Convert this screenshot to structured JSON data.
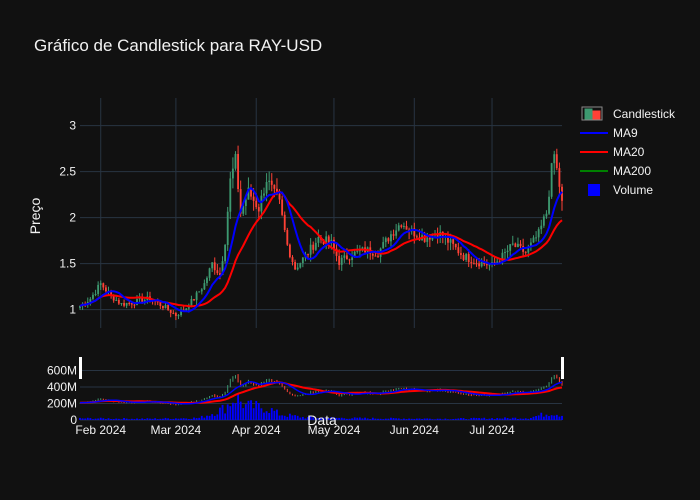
{
  "chart_data": {
    "type": "candlestick",
    "title": "Gráfico de Candlestick para RAY-USD",
    "xlabel": "Data",
    "ylabel": "Preço",
    "x_ticks": [
      "Feb 2024",
      "Mar 2024",
      "Apr 2024",
      "May 2024",
      "Jun 2024",
      "Jul 2024"
    ],
    "y_ticks_price": [
      1,
      1.5,
      2,
      2.5,
      3
    ],
    "y_ticks_volume": [
      "0",
      "200M",
      "400M",
      "600M"
    ],
    "price_range": [
      0.8,
      3.3
    ],
    "volume_range": [
      0,
      800000000
    ],
    "x_range": [
      "2024-01-24",
      "2024-07-28"
    ],
    "legend": [
      {
        "label": "Candlestick",
        "color": "#3d9970",
        "symbol": "candle"
      },
      {
        "label": "MA9",
        "color": "#0000ff",
        "symbol": "line"
      },
      {
        "label": "MA20",
        "color": "#ff0000",
        "symbol": "line"
      },
      {
        "label": "MA200",
        "color": "#008000",
        "symbol": "line"
      },
      {
        "label": "Volume",
        "color": "#0000ff",
        "symbol": "square"
      }
    ],
    "close_anchors": [
      [
        "2024-01-24",
        1.04
      ],
      [
        "2024-01-28",
        1.12
      ],
      [
        "2024-02-01",
        1.28
      ],
      [
        "2024-02-05",
        1.15
      ],
      [
        "2024-02-09",
        1.06
      ],
      [
        "2024-02-14",
        1.08
      ],
      [
        "2024-02-20",
        1.12
      ],
      [
        "2024-02-26",
        1.02
      ],
      [
        "2024-03-01",
        0.94
      ],
      [
        "2024-03-05",
        1.02
      ],
      [
        "2024-03-08",
        1.12
      ],
      [
        "2024-03-12",
        1.28
      ],
      [
        "2024-03-15",
        1.5
      ],
      [
        "2024-03-18",
        1.38
      ],
      [
        "2024-03-20",
        1.75
      ],
      [
        "2024-03-22",
        2.4
      ],
      [
        "2024-03-24",
        2.62
      ],
      [
        "2024-03-26",
        2.05
      ],
      [
        "2024-03-29",
        2.28
      ],
      [
        "2024-04-02",
        2.1
      ],
      [
        "2024-04-05",
        2.42
      ],
      [
        "2024-04-08",
        2.25
      ],
      [
        "2024-04-10",
        2.15
      ],
      [
        "2024-04-13",
        1.7
      ],
      [
        "2024-04-16",
        1.45
      ],
      [
        "2024-04-20",
        1.58
      ],
      [
        "2024-04-25",
        1.78
      ],
      [
        "2024-04-30",
        1.72
      ],
      [
        "2024-05-03",
        1.52
      ],
      [
        "2024-05-08",
        1.6
      ],
      [
        "2024-05-13",
        1.65
      ],
      [
        "2024-05-18",
        1.62
      ],
      [
        "2024-05-23",
        1.82
      ],
      [
        "2024-05-27",
        1.95
      ],
      [
        "2024-05-31",
        1.85
      ],
      [
        "2024-06-05",
        1.78
      ],
      [
        "2024-06-10",
        1.84
      ],
      [
        "2024-06-15",
        1.72
      ],
      [
        "2024-06-20",
        1.58
      ],
      [
        "2024-06-25",
        1.52
      ],
      [
        "2024-07-01",
        1.48
      ],
      [
        "2024-07-05",
        1.58
      ],
      [
        "2024-07-09",
        1.7
      ],
      [
        "2024-07-14",
        1.62
      ],
      [
        "2024-07-19",
        1.82
      ],
      [
        "2024-07-22",
        2.05
      ],
      [
        "2024-07-24",
        2.52
      ],
      [
        "2024-07-25",
        2.68
      ],
      [
        "2024-07-27",
        2.35
      ],
      [
        "2024-07-28",
        2.15
      ]
    ],
    "volume_anchors": [
      [
        "2024-01-24",
        20000000
      ],
      [
        "2024-02-20",
        15000000
      ],
      [
        "2024-03-10",
        25000000
      ],
      [
        "2024-03-15",
        80000000
      ],
      [
        "2024-03-20",
        150000000
      ],
      [
        "2024-03-24",
        280000000
      ],
      [
        "2024-03-28",
        170000000
      ],
      [
        "2024-04-05",
        150000000
      ],
      [
        "2024-04-10",
        70000000
      ],
      [
        "2024-04-20",
        30000000
      ],
      [
        "2024-05-15",
        20000000
      ],
      [
        "2024-06-15",
        15000000
      ],
      [
        "2024-07-15",
        25000000
      ],
      [
        "2024-07-24",
        90000000
      ],
      [
        "2024-07-28",
        60000000
      ]
    ],
    "grid": true,
    "colors": {
      "increasing": "#3d9970",
      "decreasing": "#ff4136",
      "ma9": "#0000ff",
      "ma20": "#ff0000",
      "ma200": "#008000",
      "volume": "#0000ff",
      "grid": "#283442",
      "background": "#111111",
      "text": "#f2f2f2"
    }
  }
}
